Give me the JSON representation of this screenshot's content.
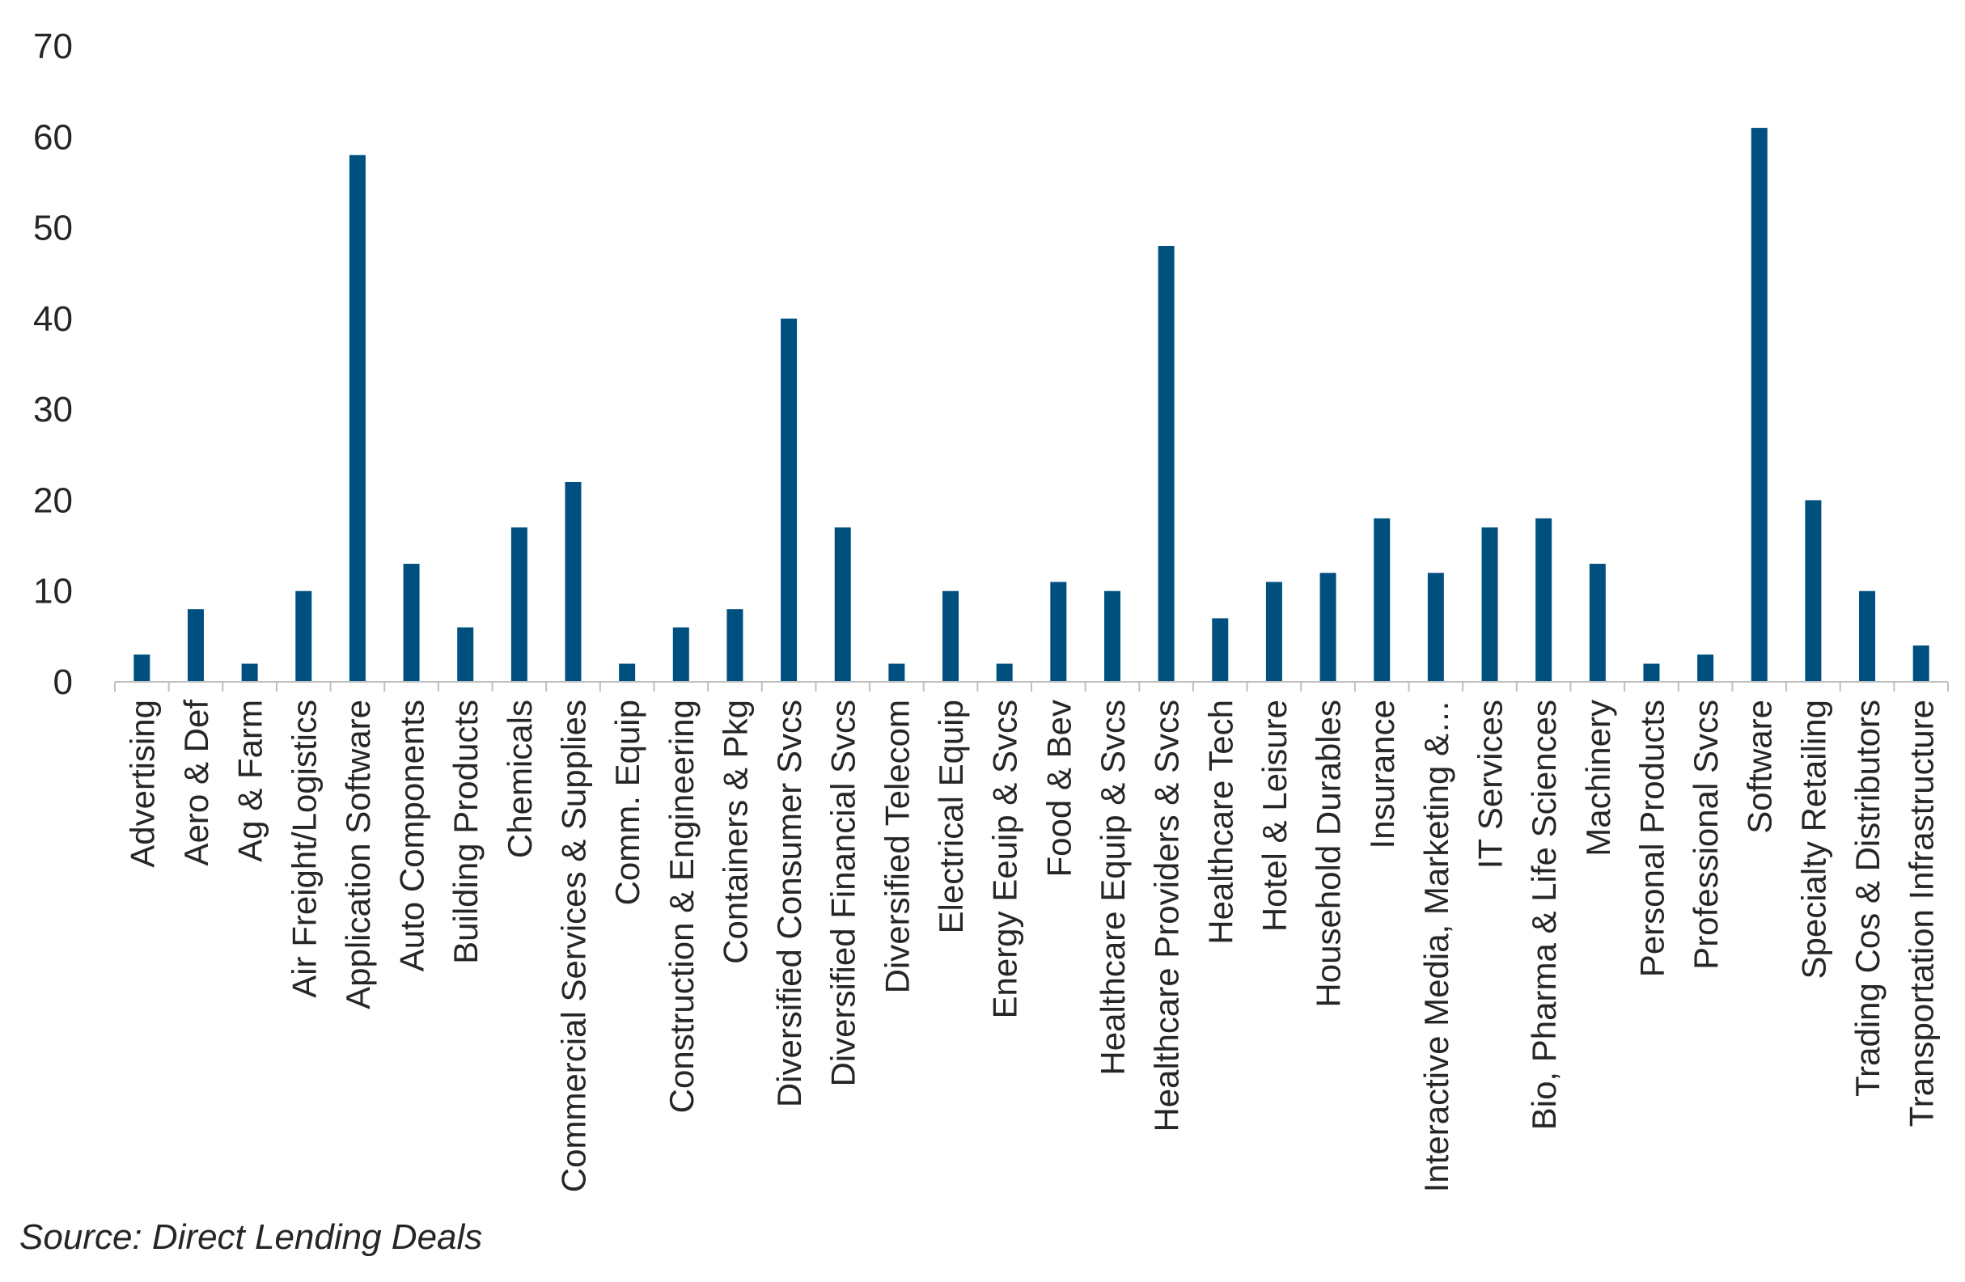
{
  "source": "Source: Direct Lending Deals",
  "chart_data": {
    "type": "bar",
    "title": "",
    "xlabel": "",
    "ylabel": "",
    "ylim": [
      0,
      70
    ],
    "yticks": [
      0,
      10,
      20,
      30,
      40,
      50,
      60,
      70
    ],
    "grid": false,
    "legend": "none",
    "bar_color": "#00507F",
    "axis_color": "#BFBFBF",
    "categories": [
      "Advertising",
      "Aero & Def",
      "Ag & Farm",
      "Air Freight/Logistics",
      "Application Software",
      "Auto Components",
      "Building Products",
      "Chemicals",
      "Commercial Services & Supplies",
      "Comm. Equip",
      "Construction & Engineering",
      "Containers & Pkg",
      "Diversified Consumer Svcs",
      "Diversified Financial Svcs",
      "Diversified Telecom",
      "Electrical Equip",
      "Energy Eeuip & Svcs",
      "Food & Bev",
      "Healthcare Equip & Svcs",
      "Healthcare Providers & Svcs",
      "Healthcare Tech",
      "Hotel & Leisure",
      "Household Durables",
      "Insurance",
      "Interactive Media, Marketing &…",
      "IT Services",
      "Bio, Pharma & Life Sciences",
      "Machinery",
      "Personal Products",
      "Professional Svcs",
      "Software",
      "Specialty Retailing",
      "Trading Cos & Distributors",
      "Transportation Infrastructure"
    ],
    "values": [
      3,
      8,
      2,
      10,
      58,
      13,
      6,
      17,
      22,
      2,
      6,
      8,
      40,
      17,
      2,
      10,
      2,
      11,
      10,
      48,
      7,
      11,
      12,
      18,
      12,
      17,
      18,
      13,
      2,
      3,
      61,
      20,
      10,
      4
    ]
  }
}
